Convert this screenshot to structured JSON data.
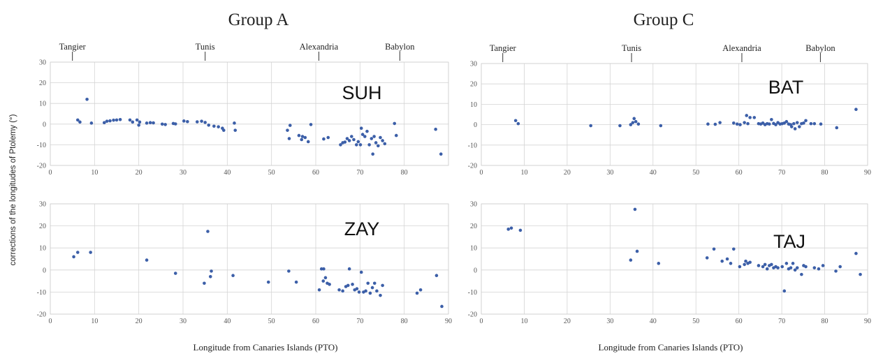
{
  "y_axis_label": "corrections of the longitudes of Ptolemy (°)",
  "colors": {
    "points": "#3c5fa8",
    "grid": "#d4d4d4"
  },
  "groups": [
    {
      "id": "group-a",
      "title": "Group A",
      "xlabel": "Longitude from Canaries Islands (PTO)"
    },
    {
      "id": "group-c",
      "title": "Group C",
      "xlabel": "Longitude from Canaries Islands (PTO)"
    }
  ],
  "cities": [
    {
      "name": "Tangier",
      "x": 5
    },
    {
      "name": "Tunis",
      "x": 35
    },
    {
      "name": "Alexandria",
      "x": 60.7
    },
    {
      "name": "Babylon",
      "x": 79
    }
  ],
  "chart_data": [
    {
      "type": "scatter",
      "group": "Group A",
      "label": "SUH",
      "xlim": [
        0,
        90
      ],
      "ylim": [
        -20,
        30
      ],
      "xticks": [
        0,
        10,
        20,
        30,
        40,
        50,
        60,
        70,
        80
      ],
      "yticks": [
        30,
        20,
        10,
        0,
        -10,
        -20
      ],
      "points": [
        [
          6.2,
          2
        ],
        [
          6.7,
          1
        ],
        [
          8.3,
          12
        ],
        [
          9.3,
          0.5
        ],
        [
          12.2,
          0.7
        ],
        [
          12.8,
          1.4
        ],
        [
          13.5,
          1.6
        ],
        [
          14.3,
          1.9
        ],
        [
          15,
          2
        ],
        [
          15.8,
          2.2
        ],
        [
          18,
          2
        ],
        [
          18.6,
          1
        ],
        [
          19.6,
          2
        ],
        [
          20,
          -0.5
        ],
        [
          20.2,
          1
        ],
        [
          21.8,
          0.5
        ],
        [
          22.6,
          0.7
        ],
        [
          23.3,
          0.6
        ],
        [
          25.3,
          0
        ],
        [
          26,
          -0.2
        ],
        [
          27.8,
          0.3
        ],
        [
          28.3,
          0.1
        ],
        [
          30.2,
          1.5
        ],
        [
          31,
          1.2
        ],
        [
          33.2,
          1.1
        ],
        [
          34.2,
          1.4
        ],
        [
          35,
          0.8
        ],
        [
          35.8,
          -0.5
        ],
        [
          37,
          -1
        ],
        [
          38,
          -1.3
        ],
        [
          38.9,
          -2
        ],
        [
          39.2,
          -3
        ],
        [
          41.6,
          0.5
        ],
        [
          41.8,
          -3
        ],
        [
          53.6,
          -3
        ],
        [
          54,
          -7
        ],
        [
          54.2,
          -0.6
        ],
        [
          56.2,
          -5.5
        ],
        [
          56.8,
          -7.5
        ],
        [
          57,
          -6
        ],
        [
          57.6,
          -6.5
        ],
        [
          58.3,
          -8.5
        ],
        [
          58.9,
          -0.2
        ],
        [
          61.8,
          -7.2
        ],
        [
          62.8,
          -6.5
        ],
        [
          65.6,
          -10
        ],
        [
          66.1,
          -9
        ],
        [
          66.6,
          -8.7
        ],
        [
          67.1,
          -7
        ],
        [
          67.6,
          -8
        ],
        [
          68.1,
          -6
        ],
        [
          68.6,
          -7.5
        ],
        [
          69.2,
          -10
        ],
        [
          69.6,
          -8.5
        ],
        [
          70.1,
          -10
        ],
        [
          70.3,
          -2
        ],
        [
          70.6,
          -5
        ],
        [
          71.1,
          -6
        ],
        [
          71.6,
          -3.5
        ],
        [
          72.1,
          -10
        ],
        [
          72.6,
          -7
        ],
        [
          72.9,
          -14.5
        ],
        [
          73.2,
          -6
        ],
        [
          73.6,
          -9
        ],
        [
          74.1,
          -10.5
        ],
        [
          74.6,
          -6.5
        ],
        [
          75.1,
          -8
        ],
        [
          75.6,
          -9.5
        ],
        [
          77.8,
          0.3
        ],
        [
          78.2,
          -5.5
        ],
        [
          87.1,
          -2.5
        ],
        [
          88.3,
          -14.5
        ]
      ]
    },
    {
      "type": "scatter",
      "group": "Group A",
      "label": "ZAY",
      "xlim": [
        0,
        90
      ],
      "ylim": [
        -20,
        30
      ],
      "xticks": [
        0,
        10,
        20,
        30,
        40,
        50,
        60,
        70,
        80,
        90
      ],
      "yticks": [
        30,
        20,
        10,
        0,
        -10,
        -20
      ],
      "points": [
        [
          5.3,
          6
        ],
        [
          6.2,
          8
        ],
        [
          9.1,
          8
        ],
        [
          21.8,
          4.5
        ],
        [
          28.3,
          -1.5
        ],
        [
          34.8,
          -6
        ],
        [
          35.6,
          17.5
        ],
        [
          36.2,
          -3
        ],
        [
          36.4,
          -0.5
        ],
        [
          41.3,
          -2.5
        ],
        [
          49.3,
          -5.5
        ],
        [
          53.9,
          -0.5
        ],
        [
          55.6,
          -5.5
        ],
        [
          60.8,
          -9
        ],
        [
          61.3,
          0.5
        ],
        [
          61.7,
          -5
        ],
        [
          61.8,
          0.5
        ],
        [
          62.2,
          -3.5
        ],
        [
          62.6,
          -6
        ],
        [
          63.1,
          -6.5
        ],
        [
          65.3,
          -9
        ],
        [
          66.1,
          -9.5
        ],
        [
          66.8,
          -7.5
        ],
        [
          67.3,
          -7
        ],
        [
          67.6,
          0.5
        ],
        [
          68.3,
          -6.5
        ],
        [
          68.8,
          -9
        ],
        [
          69.3,
          -8.5
        ],
        [
          69.8,
          -10
        ],
        [
          70.3,
          -1
        ],
        [
          70.8,
          -10
        ],
        [
          71.3,
          -9.5
        ],
        [
          71.8,
          -6
        ],
        [
          72.3,
          -10.5
        ],
        [
          72.8,
          -8
        ],
        [
          73.3,
          -6
        ],
        [
          73.8,
          -9.5
        ],
        [
          74.6,
          -11.5
        ],
        [
          75.1,
          -7
        ],
        [
          82.9,
          -10.5
        ],
        [
          83.7,
          -9
        ],
        [
          87.3,
          -2.5
        ],
        [
          88.5,
          -16.5
        ]
      ]
    },
    {
      "type": "scatter",
      "group": "Group C",
      "label": "BAT",
      "xlim": [
        0,
        90
      ],
      "ylim": [
        -20,
        30
      ],
      "xticks": [
        0,
        10,
        20,
        30,
        40,
        50,
        60,
        70,
        80,
        90
      ],
      "yticks": [
        30,
        20,
        10,
        0,
        -10,
        -20
      ],
      "points": [
        [
          8,
          2
        ],
        [
          8.6,
          0.5
        ],
        [
          25.5,
          -0.5
        ],
        [
          32.3,
          -0.5
        ],
        [
          34.8,
          0
        ],
        [
          35.3,
          1
        ],
        [
          35.6,
          3
        ],
        [
          36,
          1.5
        ],
        [
          36.6,
          0.3
        ],
        [
          41.8,
          -0.5
        ],
        [
          52.8,
          0.3
        ],
        [
          54.5,
          0.2
        ],
        [
          55.6,
          1
        ],
        [
          58.8,
          0.8
        ],
        [
          59.6,
          0.3
        ],
        [
          60.3,
          0
        ],
        [
          61.3,
          1
        ],
        [
          61.8,
          4.5
        ],
        [
          62.1,
          0.5
        ],
        [
          62.6,
          3.5
        ],
        [
          63.6,
          3.5
        ],
        [
          64.6,
          0.5
        ],
        [
          65.1,
          0.3
        ],
        [
          65.6,
          0.8
        ],
        [
          66.1,
          0
        ],
        [
          66.6,
          0.5
        ],
        [
          67.1,
          0.3
        ],
        [
          67.6,
          2.5
        ],
        [
          68.1,
          0.6
        ],
        [
          68.6,
          0
        ],
        [
          69.1,
          1
        ],
        [
          69.6,
          0.3
        ],
        [
          70.1,
          0.5
        ],
        [
          70.6,
          0.8
        ],
        [
          71.1,
          1.5
        ],
        [
          71.6,
          0.3
        ],
        [
          72.1,
          0
        ],
        [
          72.3,
          -1
        ],
        [
          72.8,
          0.5
        ],
        [
          73.1,
          -2
        ],
        [
          73.6,
          1
        ],
        [
          74.1,
          -1
        ],
        [
          74.6,
          0.5
        ],
        [
          75.1,
          0.8
        ],
        [
          75.6,
          2
        ],
        [
          76.8,
          0.5
        ],
        [
          77.6,
          0.5
        ],
        [
          79.1,
          0.3
        ],
        [
          82.8,
          -1.5
        ],
        [
          87.3,
          7.5
        ]
      ]
    },
    {
      "type": "scatter",
      "group": "Group C",
      "label": "TAJ",
      "xlim": [
        0,
        90
      ],
      "ylim": [
        -20,
        30
      ],
      "xticks": [
        0,
        10,
        20,
        30,
        40,
        50,
        60,
        70,
        80,
        90
      ],
      "yticks": [
        30,
        20,
        10,
        0,
        -10,
        -20
      ],
      "points": [
        [
          6.3,
          18.5
        ],
        [
          7,
          19
        ],
        [
          9.1,
          18
        ],
        [
          34.8,
          4.5
        ],
        [
          35.8,
          27.5
        ],
        [
          36.3,
          8.5
        ],
        [
          41.3,
          3
        ],
        [
          52.6,
          5.5
        ],
        [
          54.2,
          9.5
        ],
        [
          56.1,
          4
        ],
        [
          57.3,
          5
        ],
        [
          58.1,
          3
        ],
        [
          58.8,
          9.5
        ],
        [
          60.2,
          1.5
        ],
        [
          61.3,
          2.5
        ],
        [
          61.6,
          4
        ],
        [
          62.1,
          3
        ],
        [
          62.6,
          3.5
        ],
        [
          64.6,
          2
        ],
        [
          65.6,
          1.5
        ],
        [
          66.1,
          2.5
        ],
        [
          66.6,
          0.5
        ],
        [
          67.1,
          2
        ],
        [
          67.6,
          2.5
        ],
        [
          68.1,
          1
        ],
        [
          68.6,
          1.5
        ],
        [
          69.1,
          1
        ],
        [
          70.1,
          1.5
        ],
        [
          70.6,
          -9.5
        ],
        [
          71.1,
          3
        ],
        [
          71.6,
          0.5
        ],
        [
          72.1,
          1
        ],
        [
          72.6,
          3
        ],
        [
          73.1,
          0
        ],
        [
          73.6,
          1
        ],
        [
          74.6,
          -2
        ],
        [
          75.1,
          2
        ],
        [
          75.6,
          1.5
        ],
        [
          77.6,
          1
        ],
        [
          78.6,
          0.5
        ],
        [
          79.6,
          2
        ],
        [
          82.6,
          -0.5
        ],
        [
          83.6,
          1.5
        ],
        [
          87.3,
          7.5
        ],
        [
          88.3,
          -2
        ]
      ]
    }
  ]
}
